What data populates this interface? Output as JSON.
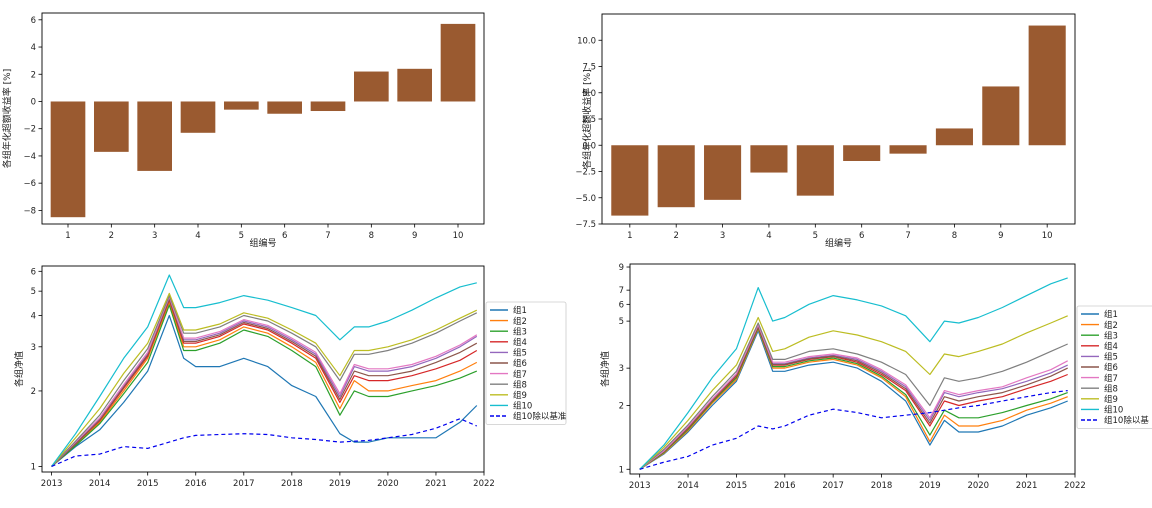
{
  "chart_data": [
    {
      "id": "bar-left",
      "type": "bar",
      "categories": [
        "1",
        "2",
        "3",
        "4",
        "5",
        "6",
        "7",
        "8",
        "9",
        "10"
      ],
      "values": [
        -8.5,
        -3.7,
        -5.1,
        -2.3,
        -0.6,
        -0.9,
        -0.7,
        2.2,
        2.4,
        5.7
      ],
      "xlabel": "组编号",
      "ylabel": "各组年化超额收益率 [%]",
      "ylim": [
        -9,
        6.5
      ],
      "yticks": [
        -8,
        -6,
        -4,
        -2,
        0,
        2,
        4,
        6
      ],
      "ytick_labels": [
        "−8",
        "−6",
        "−4",
        "−2",
        "0",
        "2",
        "4",
        "6"
      ],
      "color": "#9a5a30",
      "grid": false
    },
    {
      "id": "bar-right",
      "type": "bar",
      "categories": [
        "1",
        "2",
        "3",
        "4",
        "5",
        "6",
        "7",
        "8",
        "9",
        "10"
      ],
      "values": [
        -6.7,
        -5.9,
        -5.2,
        -2.6,
        -4.8,
        -1.5,
        -0.8,
        1.6,
        5.6,
        11.4
      ],
      "xlabel": "组编号",
      "ylabel": "各组年化超额收益率 [%]",
      "ylim": [
        -7.5,
        12.5
      ],
      "yticks": [
        -7.5,
        -5.0,
        -2.5,
        0.0,
        2.5,
        5.0,
        7.5,
        10.0
      ],
      "ytick_labels": [
        "−7.5",
        "−5.0",
        "−2.5",
        "0.0",
        "2.5",
        "5.0",
        "7.5",
        "10.0"
      ],
      "color": "#9a5a30",
      "grid": false
    },
    {
      "id": "line-left",
      "type": "line",
      "ylabel": "各组净值",
      "yscale": "log",
      "ylim": [
        0.95,
        6.3
      ],
      "yticks": [
        1,
        2,
        3,
        4,
        5,
        6
      ],
      "xlim": [
        2012.8,
        2022.0
      ],
      "xticks": [
        2013,
        2014,
        2015,
        2016,
        2017,
        2018,
        2019,
        2020,
        2021,
        2022
      ],
      "legend_position": "right",
      "grid": false,
      "x": [
        2013.0,
        2013.5,
        2014.0,
        2014.5,
        2015.0,
        2015.45,
        2015.75,
        2016.0,
        2016.5,
        2017.0,
        2017.5,
        2018.0,
        2018.5,
        2019.0,
        2019.3,
        2019.6,
        2020.0,
        2020.5,
        2021.0,
        2021.5,
        2021.85
      ],
      "series": [
        {
          "name": "组1",
          "color": "#1f77b4",
          "values": [
            1.0,
            1.2,
            1.4,
            1.8,
            2.4,
            4.0,
            2.7,
            2.5,
            2.5,
            2.7,
            2.5,
            2.1,
            1.9,
            1.35,
            1.25,
            1.25,
            1.3,
            1.3,
            1.3,
            1.5,
            1.75
          ],
          "dash": false
        },
        {
          "name": "组2",
          "color": "#ff7f0e",
          "values": [
            1.0,
            1.22,
            1.5,
            2.0,
            2.7,
            4.5,
            3.0,
            3.0,
            3.2,
            3.6,
            3.4,
            3.0,
            2.6,
            1.7,
            2.2,
            2.0,
            2.0,
            2.1,
            2.2,
            2.4,
            2.6
          ],
          "dash": false
        },
        {
          "name": "组3",
          "color": "#2ca02c",
          "values": [
            1.0,
            1.21,
            1.48,
            1.95,
            2.6,
            4.4,
            2.9,
            2.9,
            3.1,
            3.5,
            3.3,
            2.9,
            2.5,
            1.6,
            2.0,
            1.9,
            1.9,
            2.0,
            2.1,
            2.25,
            2.4
          ],
          "dash": false
        },
        {
          "name": "组4",
          "color": "#d62728",
          "values": [
            1.0,
            1.23,
            1.52,
            2.05,
            2.75,
            4.6,
            3.1,
            3.1,
            3.3,
            3.7,
            3.5,
            3.1,
            2.7,
            1.8,
            2.3,
            2.2,
            2.2,
            2.3,
            2.45,
            2.65,
            2.9
          ],
          "dash": false
        },
        {
          "name": "组5",
          "color": "#9467bd",
          "values": [
            1.0,
            1.24,
            1.55,
            2.1,
            2.8,
            4.7,
            3.2,
            3.2,
            3.4,
            3.8,
            3.6,
            3.2,
            2.8,
            1.9,
            2.5,
            2.4,
            2.4,
            2.5,
            2.7,
            3.0,
            3.3
          ],
          "dash": false
        },
        {
          "name": "组6",
          "color": "#8c564b",
          "values": [
            1.0,
            1.23,
            1.53,
            2.07,
            2.78,
            4.65,
            3.15,
            3.15,
            3.35,
            3.75,
            3.55,
            3.15,
            2.75,
            1.85,
            2.4,
            2.3,
            2.3,
            2.4,
            2.6,
            2.85,
            3.1
          ],
          "dash": false
        },
        {
          "name": "组7",
          "color": "#e377c2",
          "values": [
            1.0,
            1.25,
            1.56,
            2.12,
            2.85,
            4.75,
            3.25,
            3.25,
            3.45,
            3.85,
            3.65,
            3.25,
            2.85,
            1.95,
            2.55,
            2.45,
            2.45,
            2.55,
            2.75,
            3.05,
            3.35
          ],
          "dash": false
        },
        {
          "name": "组8",
          "color": "#7f7f7f",
          "values": [
            1.0,
            1.26,
            1.6,
            2.2,
            2.95,
            4.8,
            3.4,
            3.4,
            3.6,
            4.0,
            3.8,
            3.4,
            3.0,
            2.2,
            2.8,
            2.8,
            2.9,
            3.1,
            3.4,
            3.8,
            4.1
          ],
          "dash": false
        },
        {
          "name": "组9",
          "color": "#bcbd22",
          "values": [
            1.0,
            1.3,
            1.7,
            2.35,
            3.1,
            4.9,
            3.5,
            3.5,
            3.7,
            4.1,
            3.9,
            3.5,
            3.1,
            2.3,
            2.9,
            2.9,
            3.0,
            3.2,
            3.5,
            3.9,
            4.2
          ],
          "dash": false
        },
        {
          "name": "组10",
          "color": "#17becf",
          "values": [
            1.0,
            1.35,
            1.9,
            2.7,
            3.6,
            5.8,
            4.3,
            4.3,
            4.5,
            4.8,
            4.6,
            4.3,
            4.0,
            3.2,
            3.6,
            3.6,
            3.8,
            4.2,
            4.7,
            5.2,
            5.4
          ],
          "dash": false
        },
        {
          "name": "组10除以基准",
          "color": "#0000ee",
          "values": [
            1.0,
            1.1,
            1.12,
            1.2,
            1.18,
            1.25,
            1.3,
            1.33,
            1.34,
            1.35,
            1.34,
            1.3,
            1.28,
            1.25,
            1.26,
            1.27,
            1.3,
            1.34,
            1.42,
            1.55,
            1.45
          ],
          "dash": true
        }
      ]
    },
    {
      "id": "line-right",
      "type": "line",
      "ylabel": "各组净值",
      "yscale": "log",
      "ylim": [
        0.95,
        9.3
      ],
      "yticks": [
        1,
        2,
        3,
        5,
        6,
        7,
        9
      ],
      "xlim": [
        2012.8,
        2022.0
      ],
      "xticks": [
        2013,
        2014,
        2015,
        2016,
        2017,
        2018,
        2019,
        2020,
        2021,
        2022
      ],
      "legend_position": "right",
      "grid": false,
      "x": [
        2013.0,
        2013.5,
        2014.0,
        2014.5,
        2015.0,
        2015.45,
        2015.75,
        2016.0,
        2016.5,
        2017.0,
        2017.5,
        2018.0,
        2018.5,
        2019.0,
        2019.3,
        2019.6,
        2020.0,
        2020.5,
        2021.0,
        2021.5,
        2021.85
      ],
      "series": [
        {
          "name": "组1",
          "color": "#1f77b4",
          "values": [
            1.0,
            1.18,
            1.5,
            2.0,
            2.6,
            4.5,
            2.9,
            2.9,
            3.1,
            3.2,
            3.0,
            2.6,
            2.1,
            1.3,
            1.7,
            1.5,
            1.5,
            1.6,
            1.8,
            1.95,
            2.1
          ],
          "dash": false
        },
        {
          "name": "组2",
          "color": "#ff7f0e",
          "values": [
            1.0,
            1.19,
            1.52,
            2.05,
            2.65,
            4.6,
            3.0,
            3.0,
            3.2,
            3.3,
            3.1,
            2.7,
            2.2,
            1.35,
            1.8,
            1.6,
            1.6,
            1.7,
            1.9,
            2.05,
            2.2
          ],
          "dash": false
        },
        {
          "name": "组3",
          "color": "#2ca02c",
          "values": [
            1.0,
            1.2,
            1.54,
            2.08,
            2.7,
            4.65,
            3.05,
            3.05,
            3.25,
            3.35,
            3.15,
            2.75,
            2.25,
            1.45,
            1.9,
            1.75,
            1.75,
            1.85,
            2.0,
            2.15,
            2.3
          ],
          "dash": false
        },
        {
          "name": "组4",
          "color": "#d62728",
          "values": [
            1.0,
            1.21,
            1.56,
            2.1,
            2.75,
            4.7,
            3.1,
            3.1,
            3.3,
            3.4,
            3.2,
            2.8,
            2.35,
            1.6,
            2.1,
            2.0,
            2.1,
            2.2,
            2.4,
            2.6,
            2.8
          ],
          "dash": false
        },
        {
          "name": "组5",
          "color": "#9467bd",
          "values": [
            1.0,
            1.22,
            1.58,
            2.12,
            2.8,
            4.75,
            3.15,
            3.15,
            3.35,
            3.45,
            3.3,
            2.9,
            2.45,
            1.7,
            2.3,
            2.2,
            2.3,
            2.4,
            2.6,
            2.85,
            3.1
          ],
          "dash": false
        },
        {
          "name": "组6",
          "color": "#8c564b",
          "values": [
            1.0,
            1.21,
            1.57,
            2.11,
            2.78,
            4.72,
            3.12,
            3.12,
            3.32,
            3.42,
            3.25,
            2.85,
            2.4,
            1.65,
            2.2,
            2.1,
            2.2,
            2.3,
            2.5,
            2.75,
            3.0
          ],
          "dash": false
        },
        {
          "name": "组7",
          "color": "#e377c2",
          "values": [
            1.0,
            1.22,
            1.59,
            2.14,
            2.82,
            4.8,
            3.2,
            3.2,
            3.4,
            3.5,
            3.35,
            2.95,
            2.5,
            1.75,
            2.35,
            2.25,
            2.35,
            2.45,
            2.7,
            2.95,
            3.25
          ],
          "dash": false
        },
        {
          "name": "组8",
          "color": "#7f7f7f",
          "values": [
            1.0,
            1.24,
            1.62,
            2.2,
            2.9,
            4.9,
            3.3,
            3.3,
            3.6,
            3.7,
            3.5,
            3.2,
            2.8,
            2.0,
            2.7,
            2.6,
            2.7,
            2.9,
            3.2,
            3.6,
            3.9
          ],
          "dash": false
        },
        {
          "name": "组9",
          "color": "#bcbd22",
          "values": [
            1.0,
            1.27,
            1.7,
            2.35,
            3.1,
            5.2,
            3.6,
            3.7,
            4.2,
            4.5,
            4.3,
            4.0,
            3.6,
            2.8,
            3.5,
            3.4,
            3.6,
            3.9,
            4.4,
            4.9,
            5.3
          ],
          "dash": false
        },
        {
          "name": "组10",
          "color": "#17becf",
          "values": [
            1.0,
            1.3,
            1.85,
            2.7,
            3.7,
            7.2,
            5.0,
            5.2,
            6.0,
            6.6,
            6.3,
            5.9,
            5.3,
            4.0,
            5.0,
            4.9,
            5.2,
            5.8,
            6.6,
            7.5,
            8.0
          ],
          "dash": false
        },
        {
          "name": "组10除以基",
          "color": "#0000ee",
          "values": [
            1.0,
            1.08,
            1.15,
            1.3,
            1.4,
            1.6,
            1.55,
            1.6,
            1.8,
            1.92,
            1.85,
            1.75,
            1.8,
            1.85,
            1.9,
            1.95,
            2.0,
            2.1,
            2.2,
            2.3,
            2.35
          ],
          "dash": true
        }
      ]
    }
  ]
}
